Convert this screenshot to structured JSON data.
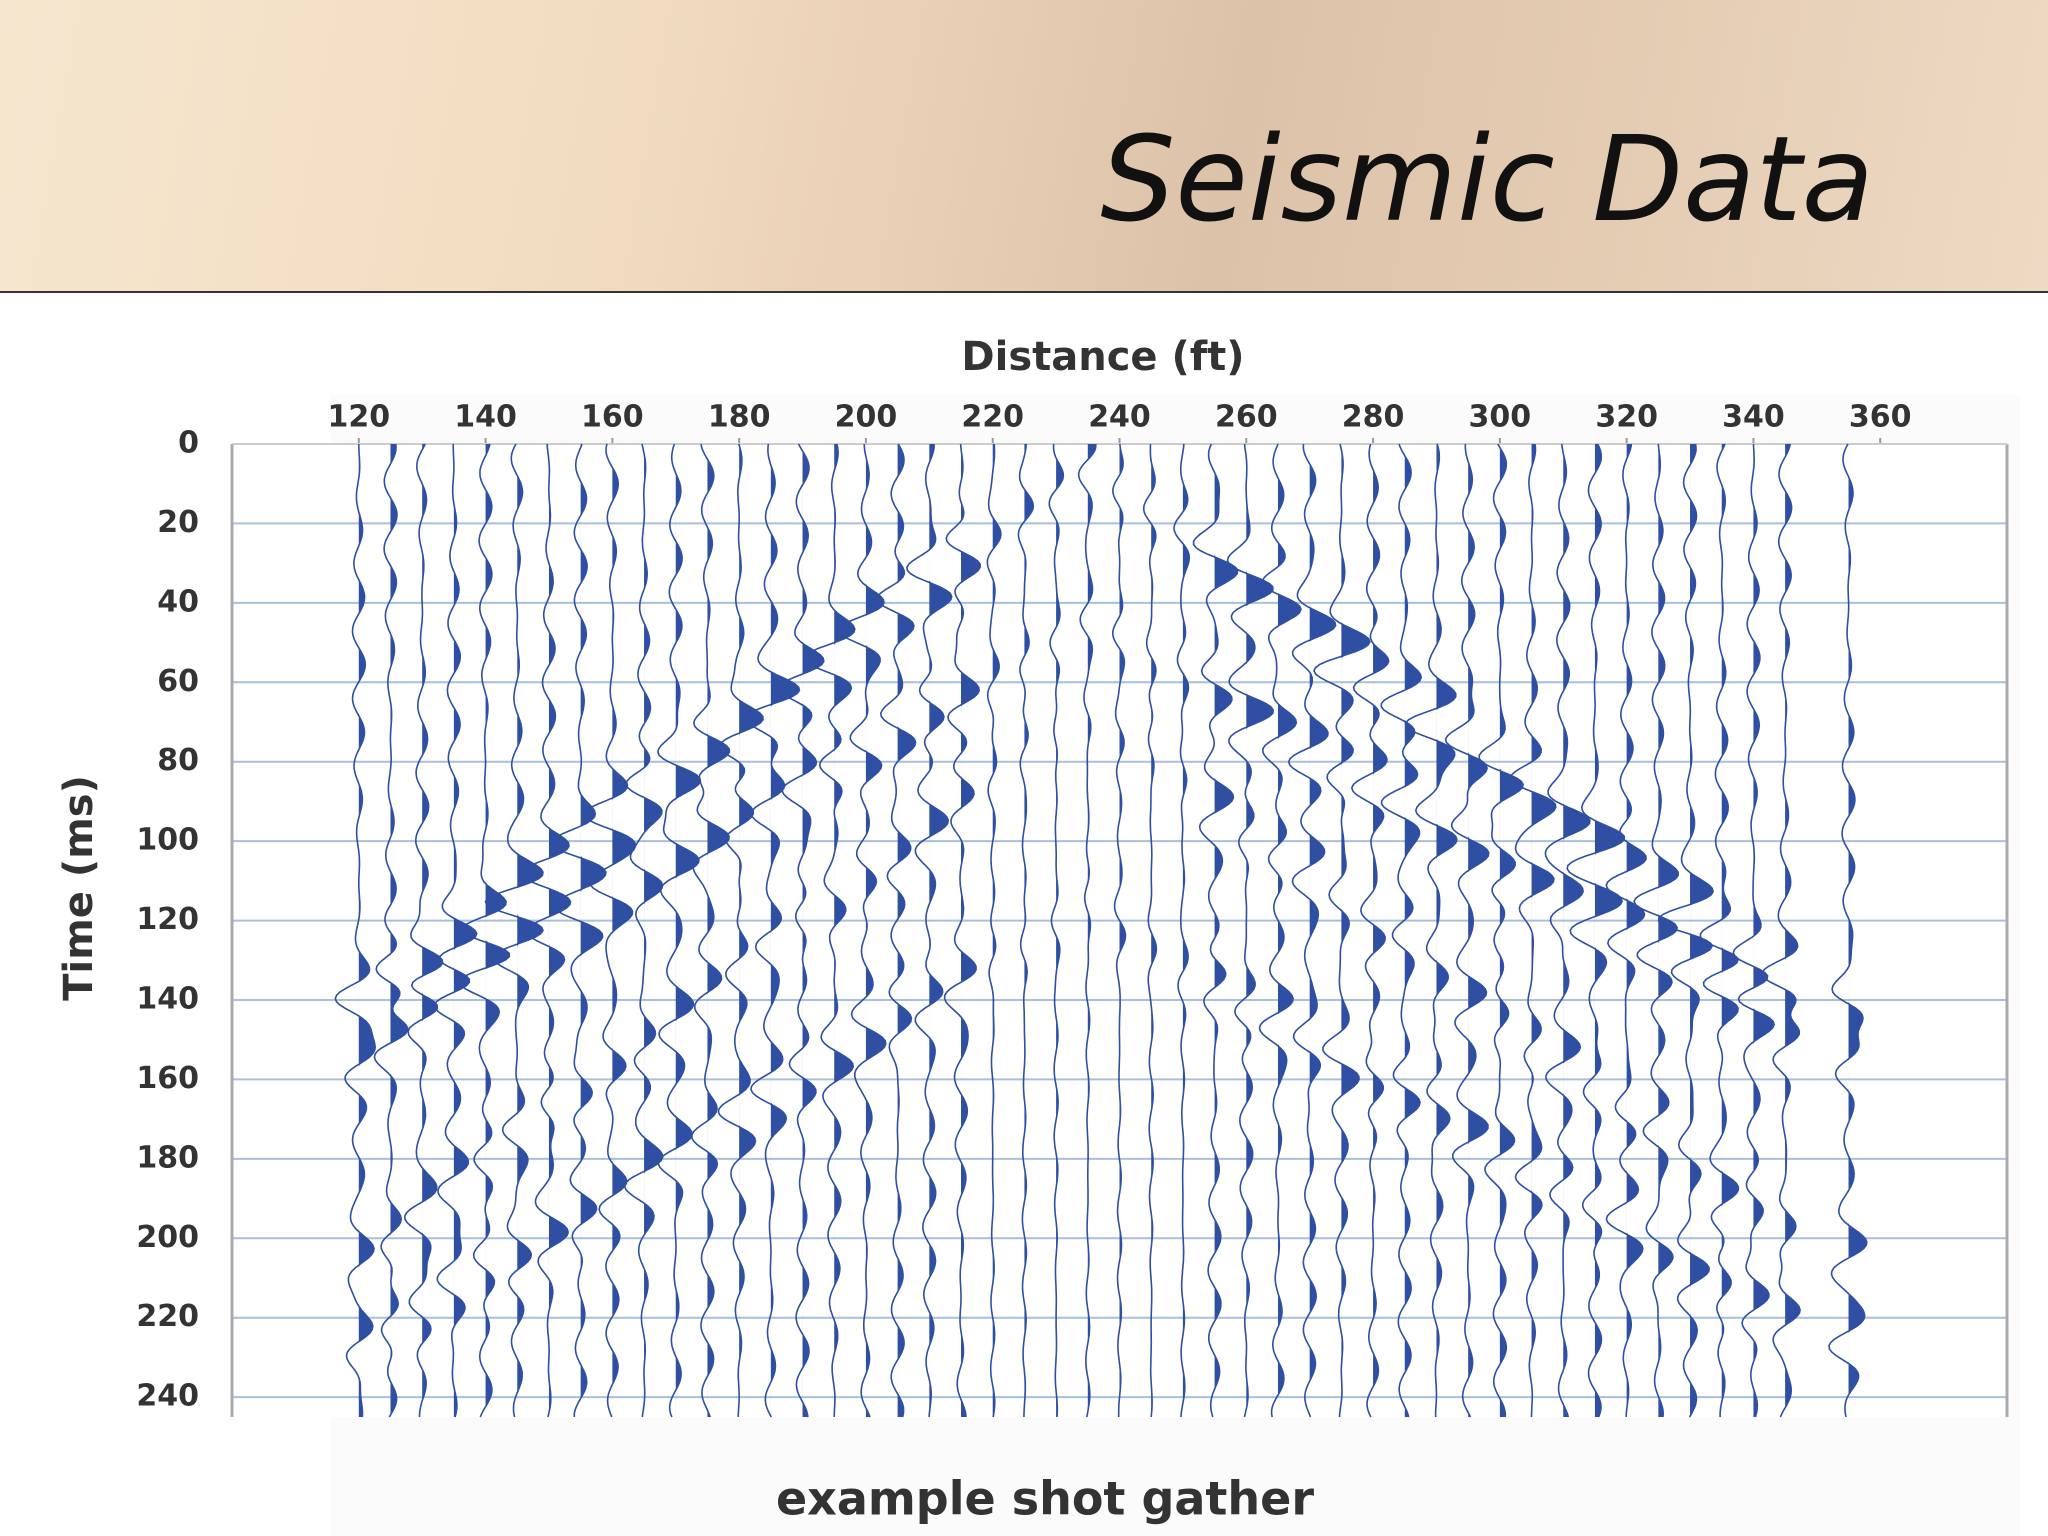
{
  "slide_title": "Seismic Data",
  "chart_data": {
    "type": "wiggle",
    "x_label": "Distance (ft)",
    "y_label": "Time (ms)",
    "caption": "example shot gather",
    "x": [
      120,
      125,
      130,
      135,
      140,
      145,
      150,
      155,
      160,
      165,
      170,
      175,
      180,
      185,
      190,
      195,
      200,
      205,
      210,
      215,
      220,
      225,
      230,
      235,
      240,
      245,
      250,
      255,
      260,
      265,
      270,
      275,
      280,
      285,
      290,
      295,
      300,
      305,
      310,
      315,
      320,
      325,
      330,
      335,
      340,
      345,
      355
    ],
    "color": "#2f4fa2",
    "xlim": [
      100,
      380
    ],
    "xticks": [
      120,
      140,
      160,
      180,
      200,
      220,
      240,
      260,
      280,
      300,
      320,
      340,
      360
    ],
    "ylim": [
      0,
      245
    ],
    "yticks": [
      0,
      20,
      40,
      60,
      80,
      100,
      120,
      140,
      160,
      180,
      200,
      220,
      240
    ],
    "y_inverted": true,
    "grid": true
  }
}
